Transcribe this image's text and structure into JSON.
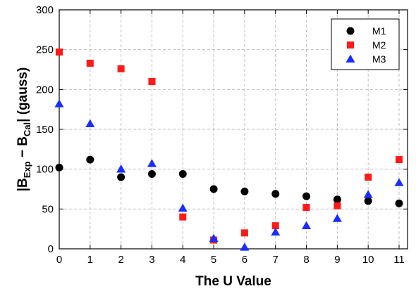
{
  "chart_data": {
    "type": "scatter",
    "xlabel": "The U Value",
    "ylabel": {
      "parts": [
        "|B",
        "Exp",
        " − B",
        "Cal",
        "| (gauss)"
      ],
      "text": "|B_Exp − B_Cal| (gauss)"
    },
    "xlim": [
      0,
      11
    ],
    "ylim": [
      0,
      300
    ],
    "x_ticks": [
      "0",
      "1",
      "2",
      "3",
      "4",
      "5",
      "6",
      "7",
      "8",
      "9",
      "10",
      "11"
    ],
    "y_ticks": [
      "0",
      "50",
      "100",
      "150",
      "200",
      "250",
      "300"
    ],
    "grid": true,
    "legend_position": "top-right",
    "x": [
      0,
      1,
      2,
      3,
      4,
      5,
      6,
      7,
      8,
      9,
      10,
      11
    ],
    "series": [
      {
        "name": "M1",
        "marker": "circle",
        "color": "#000000",
        "values": [
          102,
          112,
          90,
          94,
          94,
          75,
          72,
          69,
          66,
          62,
          60,
          57
        ]
      },
      {
        "name": "M2",
        "marker": "square",
        "color": "#ff1a1a",
        "values": [
          247,
          233,
          226,
          210,
          40,
          11,
          20,
          29,
          52,
          54,
          90,
          112
        ]
      },
      {
        "name": "M3",
        "marker": "triangle",
        "color": "#1a2cff",
        "values": [
          182,
          157,
          100,
          107,
          51,
          13,
          2,
          21,
          29,
          38,
          68,
          83
        ]
      }
    ]
  }
}
